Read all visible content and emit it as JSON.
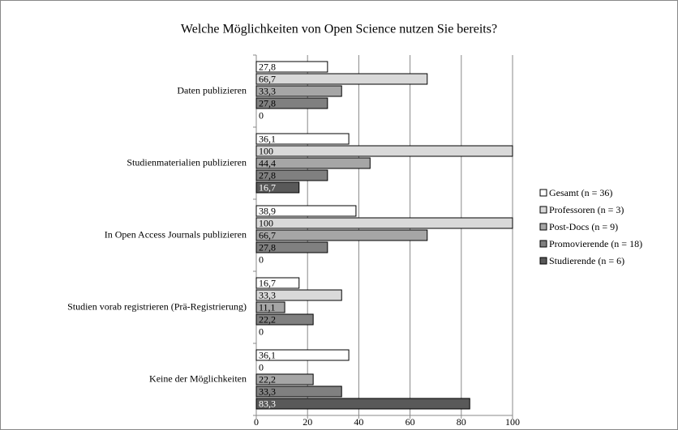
{
  "chart_data": {
    "type": "hbar",
    "title": "Welche Möglichkeiten von Open Science nutzen Sie bereits?",
    "categories": [
      "Daten publizieren",
      "Studienmaterialien  publizieren",
      "In Open Access Journals publizieren",
      "Studien vorab registrieren  (Prä-Registrierung)",
      "Keine der Möglichkeiten"
    ],
    "series": [
      {
        "name": "Gesamt (n = 36)",
        "color": "#ffffff",
        "values": [
          27.8,
          36.1,
          38.9,
          16.7,
          36.1
        ],
        "value_labels": [
          "27,8",
          "36,1",
          "38,9",
          "16,7",
          "36,1"
        ]
      },
      {
        "name": "Professoren (n = 3)",
        "color": "#d9d9d9",
        "values": [
          66.7,
          100,
          100,
          33.3,
          0
        ],
        "value_labels": [
          "66,7",
          "100",
          "100",
          "33,3",
          "0"
        ]
      },
      {
        "name": "Post-Docs (n = 9)",
        "color": "#a6a6a6",
        "values": [
          33.3,
          44.4,
          66.7,
          11.1,
          22.2
        ],
        "value_labels": [
          "33,3",
          "44,4",
          "66,7",
          "11,1",
          "22,2"
        ]
      },
      {
        "name": "Promovierende (n = 18)",
        "color": "#808080",
        "values": [
          27.8,
          27.8,
          27.8,
          22.2,
          33.3
        ],
        "value_labels": [
          "27,8",
          "27,8",
          "27,8",
          "22,2",
          "33,3"
        ]
      },
      {
        "name": "Studierende (n = 6)",
        "color": "#595959",
        "values": [
          0,
          16.7,
          0,
          0,
          83.3
        ],
        "value_labels": [
          "0",
          "16,7",
          "0",
          "0",
          "83,3"
        ]
      }
    ],
    "xlim": [
      0,
      100
    ],
    "xticks": [
      0,
      20,
      40,
      60,
      80,
      100
    ],
    "grid": true,
    "legend": "right"
  }
}
